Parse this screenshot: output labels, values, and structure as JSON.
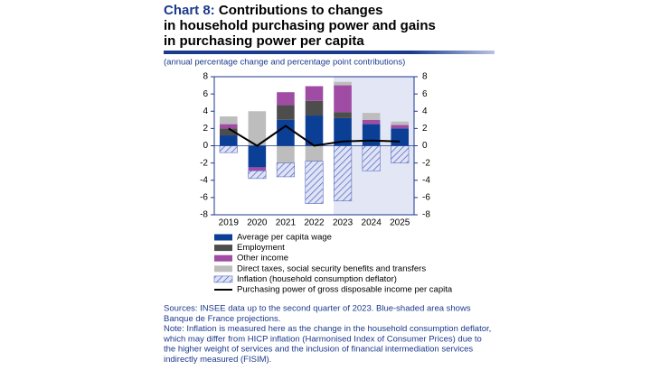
{
  "chart_data": {
    "type": "stacked-bar-line",
    "chart_label": "Chart 8:",
    "title_lines": [
      " Contributions to changes",
      "in household purchasing power and gains",
      "in purchasing power per capita"
    ],
    "subtitle": "(annual percentage change and percentage point contributions)",
    "categories": [
      "2019",
      "2020",
      "2021",
      "2022",
      "2023",
      "2024",
      "2025"
    ],
    "shaded_from": "2023",
    "ylim": [
      -8,
      8
    ],
    "yticks": [
      -8,
      -6,
      -4,
      -2,
      0,
      2,
      4,
      6,
      8
    ],
    "y2lim": [
      -8,
      8
    ],
    "y2ticks": [
      -8,
      -6,
      -4,
      -2,
      0,
      2,
      4,
      6,
      8
    ],
    "series": [
      {
        "name": "Average per capita wage",
        "color": "#0b3f96",
        "kind": "bar",
        "values": [
          1.2,
          -2.5,
          3.0,
          3.5,
          3.2,
          2.5,
          2.0
        ]
      },
      {
        "name": "Employment",
        "color": "#4d4d4d",
        "kind": "bar",
        "values": [
          0.8,
          0,
          1.7,
          1.7,
          0.7,
          0,
          0
        ]
      },
      {
        "name": "Other income",
        "color": "#a04ba4",
        "kind": "bar",
        "values": [
          0.5,
          -0.4,
          1.5,
          1.7,
          3.1,
          0.5,
          0.4
        ]
      },
      {
        "name": "Direct taxes, social security benefits and transfers",
        "color": "#bdbdbd",
        "kind": "bar",
        "values": [
          0.9,
          4.0,
          -2.0,
          -1.8,
          0.4,
          0.8,
          0.4
        ]
      },
      {
        "name": "Inflation (household consumption deflator)",
        "color": "#5a6fc4",
        "kind": "hatched",
        "values": [
          -0.8,
          -0.9,
          -1.6,
          -4.9,
          -6.4,
          -2.9,
          -2.0
        ]
      },
      {
        "name": "Purchasing power of gross disposable income per capita",
        "color": "#000000",
        "kind": "line",
        "axis": "y2",
        "values": [
          2.0,
          0.0,
          2.3,
          0.0,
          0.5,
          0.6,
          0.5
        ]
      }
    ],
    "notes": [
      "Sources: INSEE data up to the second quarter of 2023. Blue-shaded area shows",
      "Banque de France projections.",
      "Note: Inflation is measured here as the change in the household consumption deflator,",
      "which may differ from HICP inflation (Harmonised Index of Consumer Prices) due to",
      "the higher weight of services and the inclusion of financial intermediation services",
      "indirectly measured (FISIM)."
    ]
  }
}
